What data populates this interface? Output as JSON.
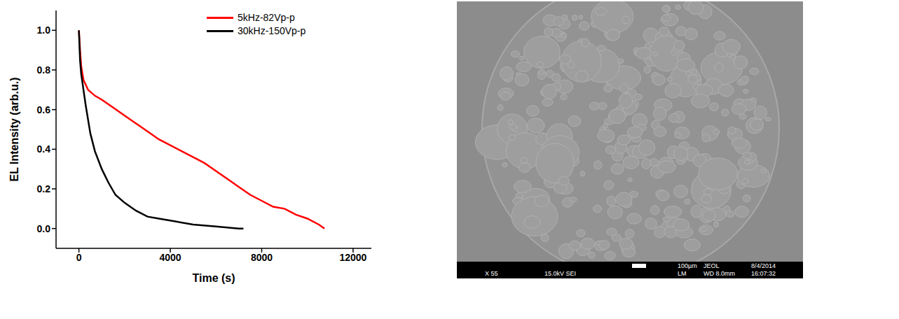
{
  "chart_data": {
    "type": "line",
    "x_label": "Time (s)",
    "y_label": "EL Intensity (arb.u.)",
    "xlim": [
      -1000,
      12800
    ],
    "xticks": [
      0,
      4000,
      8000,
      12000
    ],
    "ylim": [
      -0.1,
      1.1
    ],
    "yticks": [
      {
        "value": 0,
        "label": "0.0"
      },
      0.2,
      0.4,
      0.6,
      0.8,
      {
        "value": 1,
        "label": "1.0"
      }
    ],
    "legend": "upper right",
    "series": [
      {
        "name": "5kHz-82Vp-p",
        "color": "#ff0000",
        "line_style": "solid",
        "x": [
          0,
          50,
          100,
          200,
          400,
          700,
          1000,
          1500,
          2000,
          2500,
          3000,
          3500,
          4000,
          4500,
          5000,
          5500,
          6000,
          6500,
          7000,
          7500,
          8000,
          8500,
          9000,
          9500,
          10000,
          10500,
          10750
        ],
        "values": [
          1.0,
          0.9,
          0.82,
          0.75,
          0.7,
          0.67,
          0.65,
          0.61,
          0.57,
          0.53,
          0.49,
          0.45,
          0.42,
          0.39,
          0.36,
          0.33,
          0.29,
          0.25,
          0.21,
          0.17,
          0.14,
          0.11,
          0.1,
          0.07,
          0.05,
          0.02,
          0.0
        ]
      },
      {
        "name": "30kHz-150Vp-p",
        "color": "#000000",
        "line_style": "solid",
        "x": [
          0,
          50,
          100,
          200,
          300,
          400,
          500,
          700,
          1000,
          1300,
          1600,
          2000,
          2500,
          3000,
          3500,
          4000,
          5000,
          6000,
          7000,
          7200
        ],
        "values": [
          1.0,
          0.85,
          0.78,
          0.7,
          0.62,
          0.55,
          0.48,
          0.39,
          0.3,
          0.23,
          0.17,
          0.13,
          0.09,
          0.06,
          0.05,
          0.04,
          0.02,
          0.01,
          0.0,
          0.0
        ]
      }
    ]
  },
  "micrograph": {
    "info_bar": [
      "X 55",
      "15.0kV SEI",
      "100µm",
      "JEOL",
      "8/4/2014",
      "LM",
      "WD 8.0mm",
      "16:07:32"
    ]
  }
}
